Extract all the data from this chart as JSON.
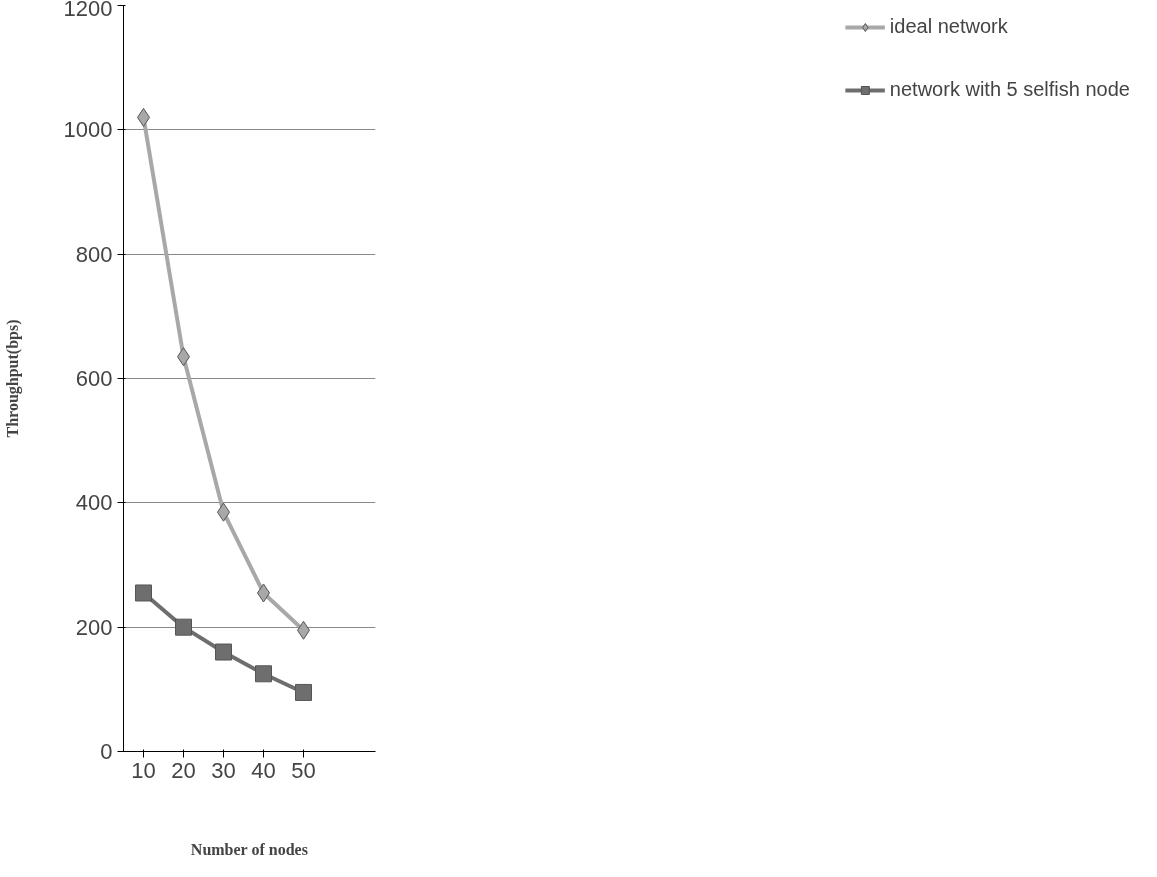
{
  "chart_data": {
    "type": "line",
    "xlabel": "Number of nodes",
    "ylabel": "Throughput(bps)",
    "categories": [
      "10",
      "20",
      "30",
      "40",
      "50"
    ],
    "ylim": [
      0,
      1200
    ],
    "yticks": [
      0,
      200,
      400,
      600,
      800,
      1000,
      1200
    ],
    "grid": "y",
    "legend": "right",
    "line_style": "solid",
    "series": [
      {
        "name": "ideal network",
        "color": "#a8a8a8",
        "marker": "diamond",
        "values": [
          1020,
          635,
          385,
          255,
          195
        ]
      },
      {
        "name": "network with 5 selfish node",
        "color": "#6e6e6e",
        "marker": "square",
        "values": [
          255,
          200,
          160,
          125,
          95
        ]
      }
    ]
  }
}
